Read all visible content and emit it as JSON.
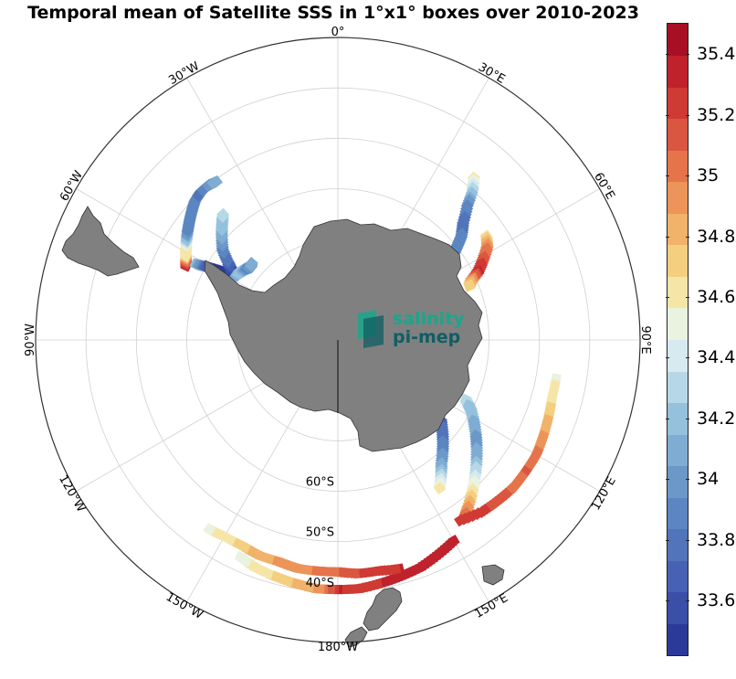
{
  "title": "Temporal mean of Satellite SSS in 1°x1° boxes over 2010-2023",
  "logo": {
    "line1": "salinity",
    "line2": "pi-mep",
    "colors": {
      "light": "#1aa68a",
      "dark": "#0f5e63"
    }
  },
  "map": {
    "projection": "south-polar-stereographic",
    "land_color": "#808080",
    "longitude_labels": [
      {
        "lon": 0,
        "text": "0°"
      },
      {
        "lon": 30,
        "text": "30°E"
      },
      {
        "lon": 60,
        "text": "60°E"
      },
      {
        "lon": 90,
        "text": "90°E"
      },
      {
        "lon": 120,
        "text": "120°E"
      },
      {
        "lon": 150,
        "text": "150°E"
      },
      {
        "lon": 180,
        "text": "180°W"
      },
      {
        "lon": -150,
        "text": "150°W"
      },
      {
        "lon": -120,
        "text": "120°W"
      },
      {
        "lon": -90,
        "text": "90°W"
      },
      {
        "lon": -60,
        "text": "60°W"
      },
      {
        "lon": -30,
        "text": "30°W"
      }
    ],
    "latitude_labels": [
      {
        "lat": -60,
        "text": "60°S"
      },
      {
        "lat": -50,
        "text": "50°S"
      },
      {
        "lat": -40,
        "text": "40°S"
      }
    ],
    "latitude_circles": [
      -80,
      -70,
      -60,
      -50,
      -40,
      -30
    ],
    "sss_tracks": [
      {
        "name": "Drake Passage transect",
        "points": [
          [
            -64,
            -56.5
          ],
          [
            -61,
            -55.5
          ],
          [
            -58,
            -54.5
          ],
          [
            -55,
            -53.5
          ],
          [
            -52,
            -52.5
          ],
          [
            -49,
            -51.5
          ],
          [
            -46,
            -50.5
          ],
          [
            -43,
            -50
          ],
          [
            -40,
            -50
          ],
          [
            -37,
            -50.5
          ]
        ],
        "sss": [
          35.35,
          34.65,
          34.55,
          33.95,
          33.9,
          33.85,
          33.9,
          33.8,
          33.95,
          34.15
        ]
      },
      {
        "name": "Antarctic Peninsula track",
        "points": [
          [
            -62,
            -58
          ],
          [
            -61,
            -60
          ],
          [
            -60,
            -62
          ],
          [
            -59,
            -64
          ],
          [
            -57,
            -65
          ],
          [
            -55,
            -63.5
          ],
          [
            -52,
            -61
          ],
          [
            -48,
            -59
          ],
          [
            -45,
            -57.5
          ],
          [
            -42,
            -56
          ]
        ],
        "sss": [
          34.2,
          33.7,
          33.5,
          33.4,
          33.55,
          33.7,
          33.9,
          34.1,
          34.2,
          34.3
        ]
      },
      {
        "name": "Weddell Sea track",
        "points": [
          [
            -58,
            -66
          ],
          [
            -55,
            -66.5
          ],
          [
            -52,
            -67
          ],
          [
            -50,
            -67.5
          ],
          [
            -48,
            -67
          ]
        ],
        "sss": [
          34.1,
          34.2,
          33.9,
          34.0,
          34.15
        ]
      },
      {
        "name": "Kerguelen sector track A",
        "points": [
          [
            40,
            -48
          ],
          [
            42,
            -50
          ],
          [
            44,
            -53
          ],
          [
            47,
            -56
          ],
          [
            50,
            -58
          ],
          [
            52,
            -60
          ],
          [
            54,
            -62
          ],
          [
            57,
            -64
          ]
        ],
        "sss": [
          34.6,
          34.3,
          33.9,
          33.8,
          33.85,
          33.9,
          33.95,
          34.0
        ]
      },
      {
        "name": "Kerguelen sector track B",
        "points": [
          [
            55,
            -54
          ],
          [
            58,
            -55
          ],
          [
            61,
            -57
          ],
          [
            64,
            -59
          ],
          [
            66,
            -61
          ],
          [
            68,
            -62
          ]
        ],
        "sss": [
          34.65,
          34.95,
          35.15,
          35.3,
          34.9,
          34.7
        ]
      },
      {
        "name": "Australian sector track",
        "points": [
          [
            115,
            -62
          ],
          [
            118,
            -60
          ],
          [
            122,
            -58
          ],
          [
            126,
            -56
          ],
          [
            130,
            -54
          ],
          [
            134,
            -52
          ],
          [
            138,
            -50
          ],
          [
            142,
            -48
          ],
          [
            145,
            -46.5
          ]
        ],
        "sss": [
          34.3,
          34.2,
          34.1,
          34.0,
          34.1,
          34.35,
          34.6,
          34.9,
          35.1
        ]
      },
      {
        "name": "South of Australia block",
        "points": [
          [
            128,
            -64
          ],
          [
            132,
            -62
          ],
          [
            136,
            -60
          ],
          [
            140,
            -58
          ],
          [
            143,
            -56
          ],
          [
            146,
            -54
          ]
        ],
        "sss": [
          33.7,
          33.8,
          33.9,
          34.05,
          34.3,
          34.65
        ]
      },
      {
        "name": "Tasman track",
        "points": [
          [
            100,
            -46
          ],
          [
            105,
            -46
          ],
          [
            110,
            -45.5
          ],
          [
            115,
            -45
          ],
          [
            120,
            -44.5
          ],
          [
            125,
            -44.5
          ],
          [
            130,
            -44.5
          ],
          [
            135,
            -45
          ],
          [
            140,
            -45.5
          ],
          [
            147,
            -47
          ]
        ],
        "sss": [
          34.55,
          34.6,
          34.75,
          34.9,
          35.0,
          35.1,
          35.05,
          35.15,
          35.2,
          35.25
        ]
      },
      {
        "name": "South Pacific track",
        "points": [
          [
            150,
            -44
          ],
          [
            155,
            -43
          ],
          [
            160,
            -42
          ],
          [
            165,
            -41.5
          ],
          [
            170,
            -41
          ],
          [
            175,
            -40.5
          ],
          [
            180,
            -40.5
          ],
          [
            -175,
            -40.5
          ],
          [
            -170,
            -41
          ],
          [
            -165,
            -41.5
          ],
          [
            -160,
            -42
          ],
          [
            -155,
            -43
          ]
        ],
        "sss": [
          35.35,
          35.35,
          35.3,
          35.3,
          35.3,
          35.25,
          35.3,
          34.9,
          34.8,
          34.7,
          34.6,
          34.5
        ]
      },
      {
        "name": "Southwest Pacific track",
        "points": [
          [
            165,
            -43
          ],
          [
            170,
            -43.5
          ],
          [
            175,
            -43.5
          ],
          [
            180,
            -44
          ],
          [
            -175,
            -44
          ],
          [
            -170,
            -44
          ],
          [
            -165,
            -44.5
          ],
          [
            -160,
            -44.5
          ],
          [
            -155,
            -45
          ],
          [
            -150,
            -45
          ],
          [
            -145,
            -44.5
          ]
        ],
        "sss": [
          35.3,
          35.25,
          35.2,
          35.1,
          35.0,
          34.95,
          34.9,
          34.85,
          34.75,
          34.6,
          34.55
        ]
      }
    ],
    "land_masses": [
      {
        "name": "Antarctica"
      },
      {
        "name": "South America (Patagonia)"
      },
      {
        "name": "New Zealand"
      },
      {
        "name": "Tasmania"
      }
    ]
  },
  "colorbar": {
    "min": 33.42,
    "max": 35.5,
    "tick_labels": [
      "35.4",
      "35.2",
      "35",
      "34.8",
      "34.6",
      "34.4",
      "34.2",
      "34",
      "33.8",
      "33.6"
    ],
    "tick_values": [
      35.4,
      35.2,
      35.0,
      34.8,
      34.6,
      34.4,
      34.2,
      34.0,
      33.8,
      33.6
    ],
    "colors": [
      "#2b3a98",
      "#3a4fa8",
      "#4762b3",
      "#5274ba",
      "#5b86c1",
      "#6c98c8",
      "#7facd2",
      "#95c1dc",
      "#b6d8e6",
      "#d6eaef",
      "#eaf2e0",
      "#f5e6a8",
      "#f3cf7f",
      "#f1b26a",
      "#ec9459",
      "#e5744b",
      "#db5640",
      "#cf3a35",
      "#c0222c",
      "#a80f24"
    ]
  }
}
